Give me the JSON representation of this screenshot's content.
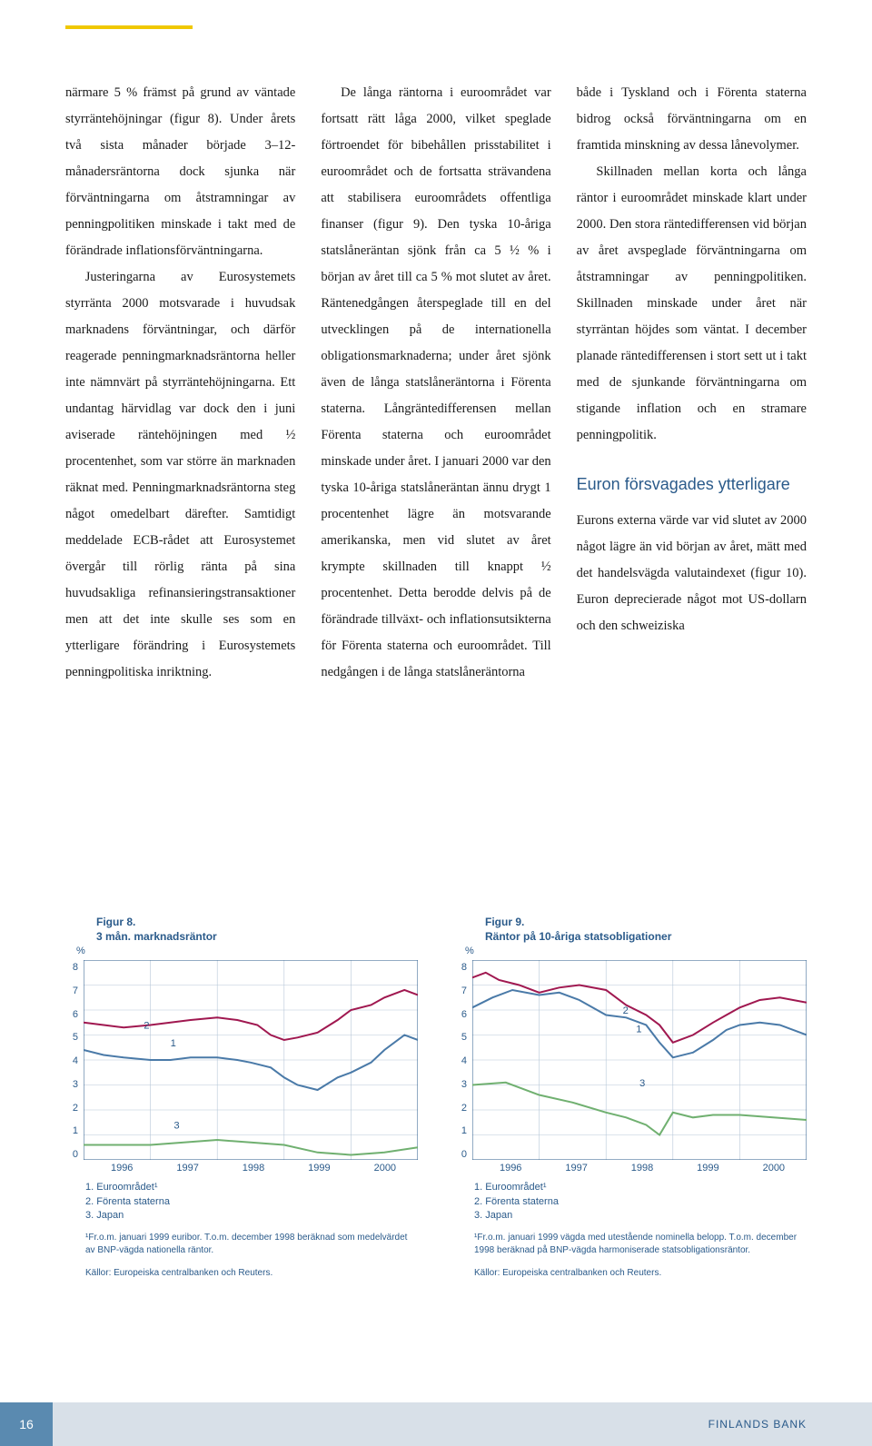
{
  "colors": {
    "accent_yellow": "#f0c800",
    "brand_blue": "#2a5a8a",
    "footer_accent": "#5a8ab0",
    "footer_bar": "#d8e0e8",
    "text": "#1a1a1a"
  },
  "col1": {
    "p1": "närmare 5 % främst på grund av väntade styrräntehöjningar (figur 8). Under årets två sista månader började 3–12-månadersräntorna dock sjunka när förväntningarna om åtstramningar av penningpolitiken minskade i takt med de förändrade inflationsförväntningarna.",
    "p2": "Justeringarna av Eurosystemets styrränta 2000 motsvarade i huvudsak marknadens förväntningar, och därför reagerade penningmarknadsräntorna heller inte nämnvärt på styrräntehöjningarna. Ett undantag härvidlag var dock den i juni aviserade räntehöjningen med ½ procentenhet, som var större än marknaden räknat med. Penningmarknadsräntorna steg något omedelbart därefter. Samtidigt meddelade ECB-rådet att Eurosystemet övergår till rörlig ränta på sina huvudsakliga refinansieringstransaktioner men att det inte skulle ses som en ytterligare förändring i Eurosystemets penningpolitiska inriktning."
  },
  "col2": {
    "p1": "De långa räntorna i euroområdet var fortsatt rätt låga 2000, vilket speglade förtroendet för bibehållen prisstabilitet i euroområdet och de fortsatta strävandena att stabilisera euroområdets offentliga finanser (figur 9). Den tyska 10-åriga statslåneräntan sjönk från ca 5 ½ % i början av året till ca 5 % mot slutet av året. Räntenedgången återspeglade till en del utvecklingen på de internationella obligationsmarknaderna; under året sjönk även de långa statslåneräntorna i Förenta staterna. Långräntedifferensen mellan Förenta staterna och euroområdet minskade under året. I januari 2000 var den tyska 10-åriga statslåneräntan ännu drygt 1 procentenhet lägre än motsvarande amerikanska, men vid slutet av året krympte skillnaden till knappt ½ procentenhet. Detta berodde delvis på de förändrade tillväxt- och inflationsutsikterna för Förenta staterna och euroområdet. Till nedgången i de långa statslåneräntorna"
  },
  "col3": {
    "p1": "både i Tyskland och i Förenta staterna bidrog också förväntningarna om en framtida minskning av dessa lånevolymer.",
    "p2": "Skillnaden mellan korta och långa räntor i euroområdet minskade klart under 2000. Den stora räntedifferensen vid början av året avspeglade förväntningarna om åtstramningar av penningpolitiken. Skillnaden minskade under året när styrräntan höjdes som väntat. I december planade räntedifferensen i stort sett ut i takt med de sjunkande förväntningarna om stigande inflation och en stramare penningpolitik.",
    "subhead": "Euron försvagades ytterligare",
    "p3": "Eurons externa värde var vid slutet av 2000 något lägre än vid början av året, mätt med det handelsvägda valutaindexet (figur 10). Euron deprecierade något mot US-dollarn och den schweiziska"
  },
  "fig8": {
    "title_l1": "Figur 8.",
    "title_l2": "3 mån. marknadsräntor",
    "ylabel": "%",
    "ylim": [
      0,
      8
    ],
    "yticks": [
      0,
      1,
      2,
      3,
      4,
      5,
      6,
      7,
      8
    ],
    "xlim": [
      1996,
      2001
    ],
    "xticks": [
      "1996",
      "1997",
      "1998",
      "1999",
      "2000"
    ],
    "grid_color": "#b8c8d8",
    "bg_color": "#ffffff",
    "series": [
      {
        "name": "Euroområdet",
        "label_num": "1",
        "color": "#a01850",
        "width": 2.0,
        "points": [
          [
            1996.0,
            5.5
          ],
          [
            1996.3,
            5.4
          ],
          [
            1996.6,
            5.3
          ],
          [
            1997.0,
            5.4
          ],
          [
            1997.3,
            5.5
          ],
          [
            1997.6,
            5.6
          ],
          [
            1998.0,
            5.7
          ],
          [
            1998.3,
            5.6
          ],
          [
            1998.6,
            5.4
          ],
          [
            1998.8,
            5.0
          ],
          [
            1999.0,
            4.8
          ],
          [
            1999.2,
            4.9
          ],
          [
            1999.5,
            5.1
          ],
          [
            1999.8,
            5.6
          ],
          [
            2000.0,
            6.0
          ],
          [
            2000.3,
            6.2
          ],
          [
            2000.5,
            6.5
          ],
          [
            2000.8,
            6.8
          ],
          [
            2001.0,
            6.6
          ]
        ],
        "label_pos": [
          1997.3,
          4.55
        ]
      },
      {
        "name": "Förenta staterna",
        "label_num": "2",
        "color": "#4a7aa8",
        "width": 2.0,
        "points": [
          [
            1996.0,
            4.4
          ],
          [
            1996.3,
            4.2
          ],
          [
            1996.6,
            4.1
          ],
          [
            1997.0,
            4.0
          ],
          [
            1997.3,
            4.0
          ],
          [
            1997.6,
            4.1
          ],
          [
            1998.0,
            4.1
          ],
          [
            1998.3,
            4.0
          ],
          [
            1998.5,
            3.9
          ],
          [
            1998.8,
            3.7
          ],
          [
            1999.0,
            3.3
          ],
          [
            1999.2,
            3.0
          ],
          [
            1999.5,
            2.8
          ],
          [
            1999.8,
            3.3
          ],
          [
            2000.0,
            3.5
          ],
          [
            2000.3,
            3.9
          ],
          [
            2000.5,
            4.4
          ],
          [
            2000.8,
            5.0
          ],
          [
            2001.0,
            4.8
          ]
        ],
        "label_pos": [
          1996.9,
          5.25
        ]
      },
      {
        "name": "Japan",
        "label_num": "3",
        "color": "#70b070",
        "width": 2.0,
        "points": [
          [
            1996.0,
            0.6
          ],
          [
            1996.5,
            0.6
          ],
          [
            1997.0,
            0.6
          ],
          [
            1997.5,
            0.7
          ],
          [
            1998.0,
            0.8
          ],
          [
            1998.5,
            0.7
          ],
          [
            1999.0,
            0.6
          ],
          [
            1999.5,
            0.3
          ],
          [
            2000.0,
            0.2
          ],
          [
            2000.5,
            0.3
          ],
          [
            2001.0,
            0.5
          ]
        ],
        "label_pos": [
          1997.35,
          1.25
        ]
      }
    ],
    "legend": [
      "1. Euroområdet¹",
      "2. Förenta staterna",
      "3. Japan"
    ],
    "footnote": "¹Fr.o.m. januari 1999 euribor. T.o.m. december 1998 beräknad som medelvärdet av BNP-vägda nationella räntor.",
    "source": "Källor: Europeiska centralbanken och Reuters."
  },
  "fig9": {
    "title_l1": "Figur 9.",
    "title_l2": "Räntor på 10-åriga statsobligationer",
    "ylabel": "%",
    "ylim": [
      0,
      8
    ],
    "yticks": [
      0,
      1,
      2,
      3,
      4,
      5,
      6,
      7,
      8
    ],
    "xlim": [
      1996,
      2001
    ],
    "xticks": [
      "1996",
      "1997",
      "1998",
      "1999",
      "2000"
    ],
    "grid_color": "#b8c8d8",
    "bg_color": "#ffffff",
    "series": [
      {
        "name": "Euroområdet",
        "label_num": "1",
        "color": "#a01850",
        "width": 2.0,
        "points": [
          [
            1996.0,
            7.3
          ],
          [
            1996.2,
            7.5
          ],
          [
            1996.4,
            7.2
          ],
          [
            1996.7,
            7.0
          ],
          [
            1997.0,
            6.7
          ],
          [
            1997.3,
            6.9
          ],
          [
            1997.6,
            7.0
          ],
          [
            1998.0,
            6.8
          ],
          [
            1998.3,
            6.2
          ],
          [
            1998.6,
            5.8
          ],
          [
            1998.8,
            5.4
          ],
          [
            1999.0,
            4.7
          ],
          [
            1999.3,
            5.0
          ],
          [
            1999.6,
            5.5
          ],
          [
            1999.8,
            5.8
          ],
          [
            2000.0,
            6.1
          ],
          [
            2000.3,
            6.4
          ],
          [
            2000.6,
            6.5
          ],
          [
            2001.0,
            6.3
          ]
        ],
        "label_pos": [
          1998.45,
          5.1
        ]
      },
      {
        "name": "Förenta staterna",
        "label_num": "2",
        "color": "#4a7aa8",
        "width": 2.0,
        "points": [
          [
            1996.0,
            6.1
          ],
          [
            1996.3,
            6.5
          ],
          [
            1996.6,
            6.8
          ],
          [
            1997.0,
            6.6
          ],
          [
            1997.3,
            6.7
          ],
          [
            1997.6,
            6.4
          ],
          [
            1998.0,
            5.8
          ],
          [
            1998.3,
            5.7
          ],
          [
            1998.6,
            5.4
          ],
          [
            1998.8,
            4.7
          ],
          [
            1999.0,
            4.1
          ],
          [
            1999.3,
            4.3
          ],
          [
            1999.6,
            4.8
          ],
          [
            1999.8,
            5.2
          ],
          [
            2000.0,
            5.4
          ],
          [
            2000.3,
            5.5
          ],
          [
            2000.6,
            5.4
          ],
          [
            2001.0,
            5.0
          ]
        ],
        "label_pos": [
          1998.25,
          5.85
        ]
      },
      {
        "name": "Japan",
        "label_num": "3",
        "color": "#70b070",
        "width": 2.0,
        "points": [
          [
            1996.0,
            3.0
          ],
          [
            1996.5,
            3.1
          ],
          [
            1997.0,
            2.6
          ],
          [
            1997.5,
            2.3
          ],
          [
            1998.0,
            1.9
          ],
          [
            1998.3,
            1.7
          ],
          [
            1998.6,
            1.4
          ],
          [
            1998.8,
            1.0
          ],
          [
            1999.0,
            1.9
          ],
          [
            1999.3,
            1.7
          ],
          [
            1999.6,
            1.8
          ],
          [
            2000.0,
            1.8
          ],
          [
            2000.5,
            1.7
          ],
          [
            2001.0,
            1.6
          ]
        ],
        "label_pos": [
          1998.5,
          2.95
        ]
      }
    ],
    "legend": [
      "1. Euroområdet¹",
      "2. Förenta staterna",
      "3. Japan"
    ],
    "footnote": "¹Fr.o.m. januari 1999 vägda med utestående nominella belopp. T.o.m. december 1998 beräknad på BNP-vägda harmoniserade statsobligationsräntor.",
    "source": "Källor: Europeiska centralbanken och Reuters."
  },
  "footer": {
    "page": "16",
    "bank": "FINLANDS BANK"
  }
}
